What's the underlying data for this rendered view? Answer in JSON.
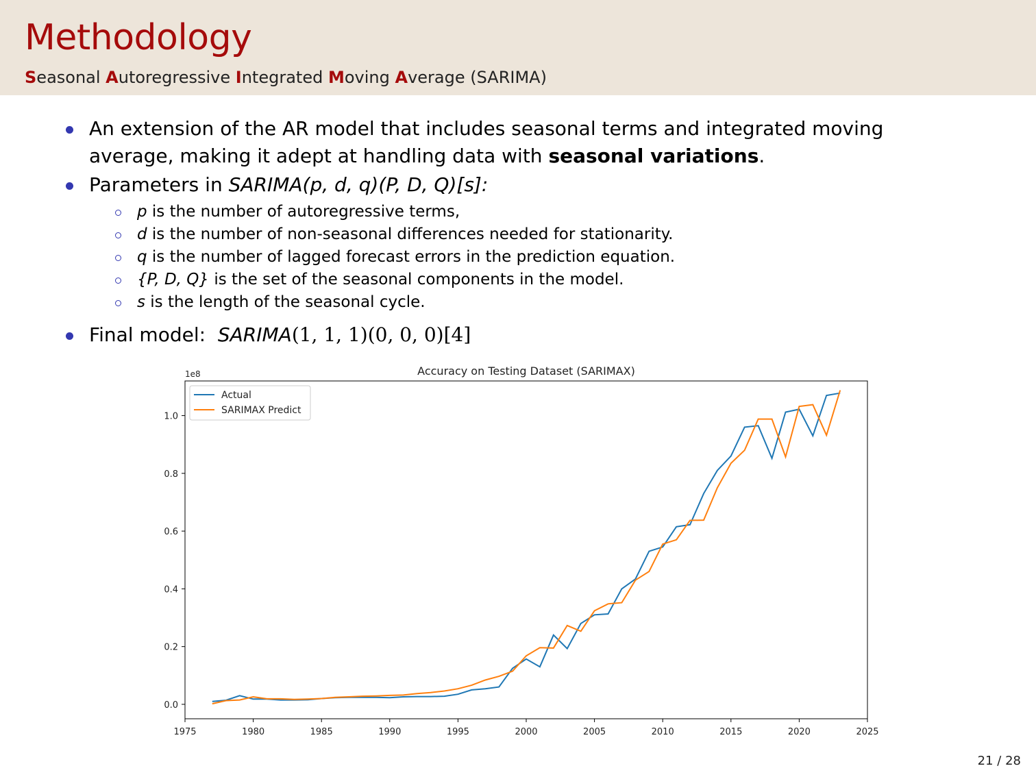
{
  "slide": {
    "title": "Methodology",
    "subtitle_parts": [
      {
        "initial": "S",
        "rest": "easonal "
      },
      {
        "initial": "A",
        "rest": "utoregressive "
      },
      {
        "initial": "I",
        "rest": "ntegrated "
      },
      {
        "initial": "M",
        "rest": "oving "
      },
      {
        "initial": "A",
        "rest": "verage (SARIMA)"
      }
    ],
    "bullet1_line1": "An extension of the AR model that includes seasonal terms and integrated moving",
    "bullet1_line2_pre": "average, making it adept at handling data with ",
    "bullet1_line2_bold": "seasonal variations",
    "bullet1_line2_post": ".",
    "bullet2_pre": "Parameters in ",
    "bullet2_formula": "SARIMA(p, d, q)(P, D, Q)[s]:",
    "subitems": [
      {
        "var": "p",
        "text": " is the number of autoregressive terms,"
      },
      {
        "var": "d",
        "text": " is the number of non-seasonal differences needed for stationarity."
      },
      {
        "var": "q",
        "text": " is the number of lagged forecast errors in the prediction equation."
      },
      {
        "var": "{P, D, Q}",
        "text": " is the set of the seasonal components in the model."
      },
      {
        "var": "s",
        "text": " is the length of the seasonal cycle."
      }
    ],
    "bullet3_pre": "Final model:  ",
    "bullet3_formula_italic": "SARIMA",
    "bullet3_formula_rest": "(1, 1, 1)(0, 0, 0)[4]",
    "page_number": "21 / 28"
  },
  "chart_data": {
    "type": "line",
    "title": "Accuracy on Testing Dataset (SARIMAX)",
    "y_scale_label": "1e8",
    "xlim": [
      1975,
      2025
    ],
    "ylim": [
      -0.05,
      1.12
    ],
    "xticks": [
      1975,
      1980,
      1985,
      1990,
      1995,
      2000,
      2005,
      2010,
      2015,
      2020,
      2025
    ],
    "xtick_labels": [
      "1975",
      "1980",
      "1985",
      "1990",
      "1995",
      "2000",
      "2005",
      "2010",
      "2015",
      "2020",
      "2025"
    ],
    "yticks": [
      0.0,
      0.2,
      0.4,
      0.6,
      0.8,
      1.0
    ],
    "ytick_labels": [
      "0.0",
      "0.2",
      "0.4",
      "0.6",
      "0.8",
      "1.0"
    ],
    "legend_position": "top-left",
    "series": [
      {
        "name": "Actual",
        "color": "#1f77b4",
        "x": [
          1977,
          1978,
          1979,
          1980,
          1981,
          1982,
          1983,
          1984,
          1985,
          1986,
          1987,
          1988,
          1989,
          1990,
          1991,
          1992,
          1993,
          1994,
          1995,
          1996,
          1997,
          1998,
          1999,
          2000,
          2001,
          2002,
          2003,
          2004,
          2005,
          2006,
          2007,
          2008,
          2009,
          2010,
          2011,
          2012,
          2013,
          2014,
          2015,
          2016,
          2017,
          2018,
          2019,
          2020,
          2021,
          2022,
          2023
        ],
        "y": [
          0.01,
          0.014,
          0.03,
          0.018,
          0.018,
          0.015,
          0.015,
          0.016,
          0.02,
          0.023,
          0.024,
          0.024,
          0.024,
          0.023,
          0.026,
          0.027,
          0.027,
          0.028,
          0.035,
          0.05,
          0.054,
          0.06,
          0.125,
          0.157,
          0.13,
          0.24,
          0.193,
          0.28,
          0.31,
          0.313,
          0.4,
          0.434,
          0.53,
          0.545,
          0.615,
          0.622,
          0.73,
          0.81,
          0.86,
          0.96,
          0.965,
          0.852,
          1.012,
          1.022,
          0.93,
          1.07,
          1.078
        ]
      },
      {
        "name": "SARIMAX Predict",
        "color": "#ff7f0e",
        "x": [
          1977,
          1978,
          1979,
          1980,
          1981,
          1982,
          1983,
          1984,
          1985,
          1986,
          1987,
          1988,
          1989,
          1990,
          1991,
          1992,
          1993,
          1994,
          1995,
          1996,
          1997,
          1998,
          1999,
          2000,
          2001,
          2002,
          2003,
          2004,
          2005,
          2006,
          2007,
          2008,
          2009,
          2010,
          2011,
          2012,
          2013,
          2014,
          2015,
          2016,
          2017,
          2018,
          2019,
          2020,
          2021,
          2022,
          2023
        ],
        "y": [
          0.002,
          0.013,
          0.015,
          0.026,
          0.019,
          0.019,
          0.017,
          0.018,
          0.02,
          0.024,
          0.026,
          0.028,
          0.029,
          0.031,
          0.032,
          0.037,
          0.041,
          0.046,
          0.054,
          0.066,
          0.084,
          0.097,
          0.115,
          0.168,
          0.196,
          0.195,
          0.273,
          0.253,
          0.324,
          0.348,
          0.352,
          0.43,
          0.46,
          0.555,
          0.57,
          0.637,
          0.638,
          0.75,
          0.835,
          0.88,
          0.988,
          0.988,
          0.857,
          1.032,
          1.038,
          0.932,
          1.088
        ]
      }
    ]
  }
}
